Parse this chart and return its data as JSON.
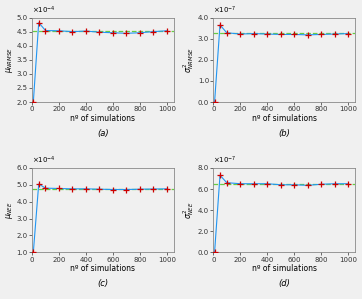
{
  "x": [
    10,
    50,
    100,
    200,
    300,
    400,
    500,
    600,
    700,
    800,
    900,
    1000
  ],
  "subplot_a": {
    "title": "(a)",
    "ylabel": "$\\mu_{NRMSE}$",
    "scale": 0.0001,
    "ylim": [
      2.0,
      5.0
    ],
    "yticks": [
      2.0,
      2.5,
      3.0,
      3.5,
      4.0,
      4.5,
      5.0
    ],
    "ref_val": 4.52,
    "data": [
      2.0,
      4.82,
      4.54,
      4.53,
      4.5,
      4.52,
      4.48,
      4.46,
      4.44,
      4.46,
      4.5,
      4.53
    ]
  },
  "subplot_b": {
    "title": "(b)",
    "ylabel": "$\\sigma^2_{NRMSE}$",
    "scale": 1e-07,
    "ylim": [
      0.0,
      4.0
    ],
    "yticks": [
      0.0,
      1.0,
      2.0,
      3.0,
      4.0
    ],
    "ref_val": 3.25,
    "data": [
      0.02,
      3.65,
      3.28,
      3.22,
      3.24,
      3.22,
      3.2,
      3.2,
      3.18,
      3.2,
      3.22,
      3.24
    ]
  },
  "subplot_c": {
    "title": "(c)",
    "ylabel": "$\\mu_{NEE}$",
    "scale": 0.0001,
    "ylim": [
      1.0,
      6.0
    ],
    "yticks": [
      1.0,
      2.0,
      3.0,
      4.0,
      5.0,
      6.0
    ],
    "ref_val": 4.75,
    "data": [
      1.0,
      5.05,
      4.8,
      4.78,
      4.76,
      4.76,
      4.74,
      4.72,
      4.72,
      4.74,
      4.75,
      4.76
    ]
  },
  "subplot_d": {
    "title": "(d)",
    "ylabel": "$\\sigma^2_{NEE}$",
    "scale": 1e-07,
    "ylim": [
      0.0,
      8.0
    ],
    "yticks": [
      0.0,
      2.0,
      4.0,
      6.0,
      8.0
    ],
    "ref_val": 6.5,
    "data": [
      0.05,
      7.3,
      6.6,
      6.5,
      6.5,
      6.5,
      6.4,
      6.4,
      6.35,
      6.45,
      6.5,
      6.5
    ]
  },
  "xlabel": "nº of simulations",
  "line_color": "#2196F3",
  "marker_color": "#CC0000",
  "ref_color": "#66CC44",
  "bg_color": "#F0F0F0",
  "fig_bg": "#F0F0F0",
  "xlim": [
    0,
    1050
  ],
  "xticks": [
    0,
    200,
    400,
    600,
    800,
    1000
  ]
}
